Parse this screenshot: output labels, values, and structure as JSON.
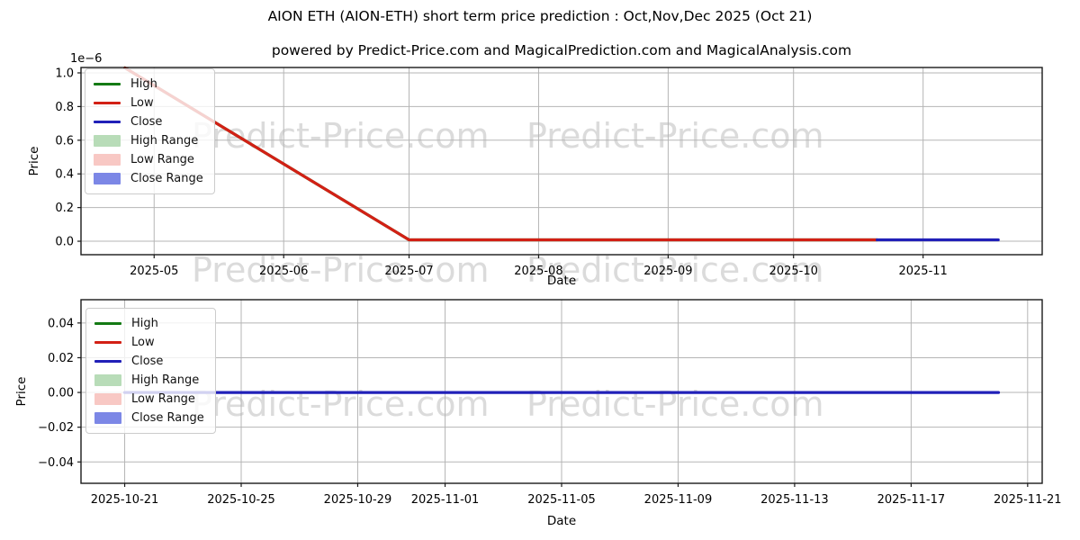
{
  "figure": {
    "title": "AION ETH (AION-ETH) short term price prediction : Oct,Nov,Dec 2025 (Oct 21)",
    "subtitle": "powered by Predict-Price.com and MagicalPrediction.com and MagicalAnalysis.com",
    "watermark_text": "Predict-Price.com",
    "watermark_color": "#dbdbdb"
  },
  "colors": {
    "high": "#147a14",
    "low": "#d22015",
    "close": "#2120b8",
    "high_range": "#b8dcb8",
    "low_range": "#f8c8c4",
    "close_range": "#7c87e6",
    "grid": "#b5b5b5",
    "spine": "#1a1a1a"
  },
  "legend": {
    "items": [
      {
        "label": "High",
        "swatch": "line",
        "color": "#147a14"
      },
      {
        "label": "Low",
        "swatch": "line",
        "color": "#d22015"
      },
      {
        "label": "Close",
        "swatch": "line",
        "color": "#2120b8"
      },
      {
        "label": "High Range",
        "swatch": "patch",
        "color": "#b8dcb8"
      },
      {
        "label": "Low Range",
        "swatch": "patch",
        "color": "#f8c8c4"
      },
      {
        "label": "Close Range",
        "swatch": "patch",
        "color": "#7c87e6"
      }
    ]
  },
  "chart_data": [
    {
      "type": "line",
      "title": "",
      "xlabel": "Date",
      "ylabel": "Price",
      "y_offset_label": "1e−6",
      "y_unit_multiplier": 1e-06,
      "xlim": [
        "2025-04-13T12:00",
        "2025-11-29T12:00"
      ],
      "ylim": [
        -0.08,
        1.032
      ],
      "grid": true,
      "legend_position": "upper left",
      "x_ticks": [
        {
          "date": "2025-05-01",
          "label": "2025-05"
        },
        {
          "date": "2025-06-01",
          "label": "2025-06"
        },
        {
          "date": "2025-07-01",
          "label": "2025-07"
        },
        {
          "date": "2025-08-01",
          "label": "2025-08"
        },
        {
          "date": "2025-09-01",
          "label": "2025-09"
        },
        {
          "date": "2025-10-01",
          "label": "2025-10"
        },
        {
          "date": "2025-11-01",
          "label": "2025-11"
        }
      ],
      "y_ticks": [
        {
          "v": 0.0,
          "label": "0.0"
        },
        {
          "v": 0.2,
          "label": "0.2"
        },
        {
          "v": 0.4,
          "label": "0.4"
        },
        {
          "v": 0.6,
          "label": "0.6"
        },
        {
          "v": 0.8,
          "label": "0.8"
        },
        {
          "v": 1.0,
          "label": "1.0"
        }
      ],
      "series": [
        {
          "name": "High",
          "color": "#147a14",
          "points": [
            [
              "2025-04-24",
              1.03
            ],
            [
              "2025-07-01",
              0.008
            ],
            [
              "2025-10-21",
              0.008
            ]
          ],
          "note": "coincides with Low line, hidden beneath it"
        },
        {
          "name": "Low",
          "color": "#d22015",
          "points": [
            [
              "2025-04-24",
              1.03
            ],
            [
              "2025-07-01",
              0.008
            ],
            [
              "2025-10-21",
              0.008
            ]
          ]
        },
        {
          "name": "Close",
          "color": "#2120b8",
          "points": [
            [
              "2025-10-21",
              0.008
            ],
            [
              "2025-11-19",
              0.008
            ]
          ]
        }
      ]
    },
    {
      "type": "line",
      "title": "",
      "xlabel": "Date",
      "ylabel": "Price",
      "y_offset_label": "",
      "y_unit_multiplier": 1,
      "xlim": [
        "2025-10-19T12:00",
        "2025-11-21T12:00"
      ],
      "ylim": [
        -0.0523,
        0.0534
      ],
      "grid": true,
      "legend_position": "upper left",
      "x_ticks": [
        {
          "date": "2025-10-21",
          "label": "2025-10-21"
        },
        {
          "date": "2025-10-25",
          "label": "2025-10-25"
        },
        {
          "date": "2025-10-29",
          "label": "2025-10-29"
        },
        {
          "date": "2025-11-01",
          "label": "2025-11-01"
        },
        {
          "date": "2025-11-05",
          "label": "2025-11-05"
        },
        {
          "date": "2025-11-09",
          "label": "2025-11-09"
        },
        {
          "date": "2025-11-13",
          "label": "2025-11-13"
        },
        {
          "date": "2025-11-17",
          "label": "2025-11-17"
        },
        {
          "date": "2025-11-21",
          "label": "2025-11-21"
        }
      ],
      "y_ticks": [
        {
          "v": 0.04,
          "label": "0.04"
        },
        {
          "v": 0.02,
          "label": "0.02"
        },
        {
          "v": 0.0,
          "label": "0.00"
        },
        {
          "v": -0.02,
          "label": "−0.02"
        },
        {
          "v": -0.04,
          "label": "−0.04"
        }
      ],
      "series": [
        {
          "name": "Close",
          "color": "#2120b8",
          "points": [
            [
              "2025-10-21",
              0.0
            ],
            [
              "2025-11-20",
              0.0
            ]
          ]
        }
      ]
    }
  ]
}
